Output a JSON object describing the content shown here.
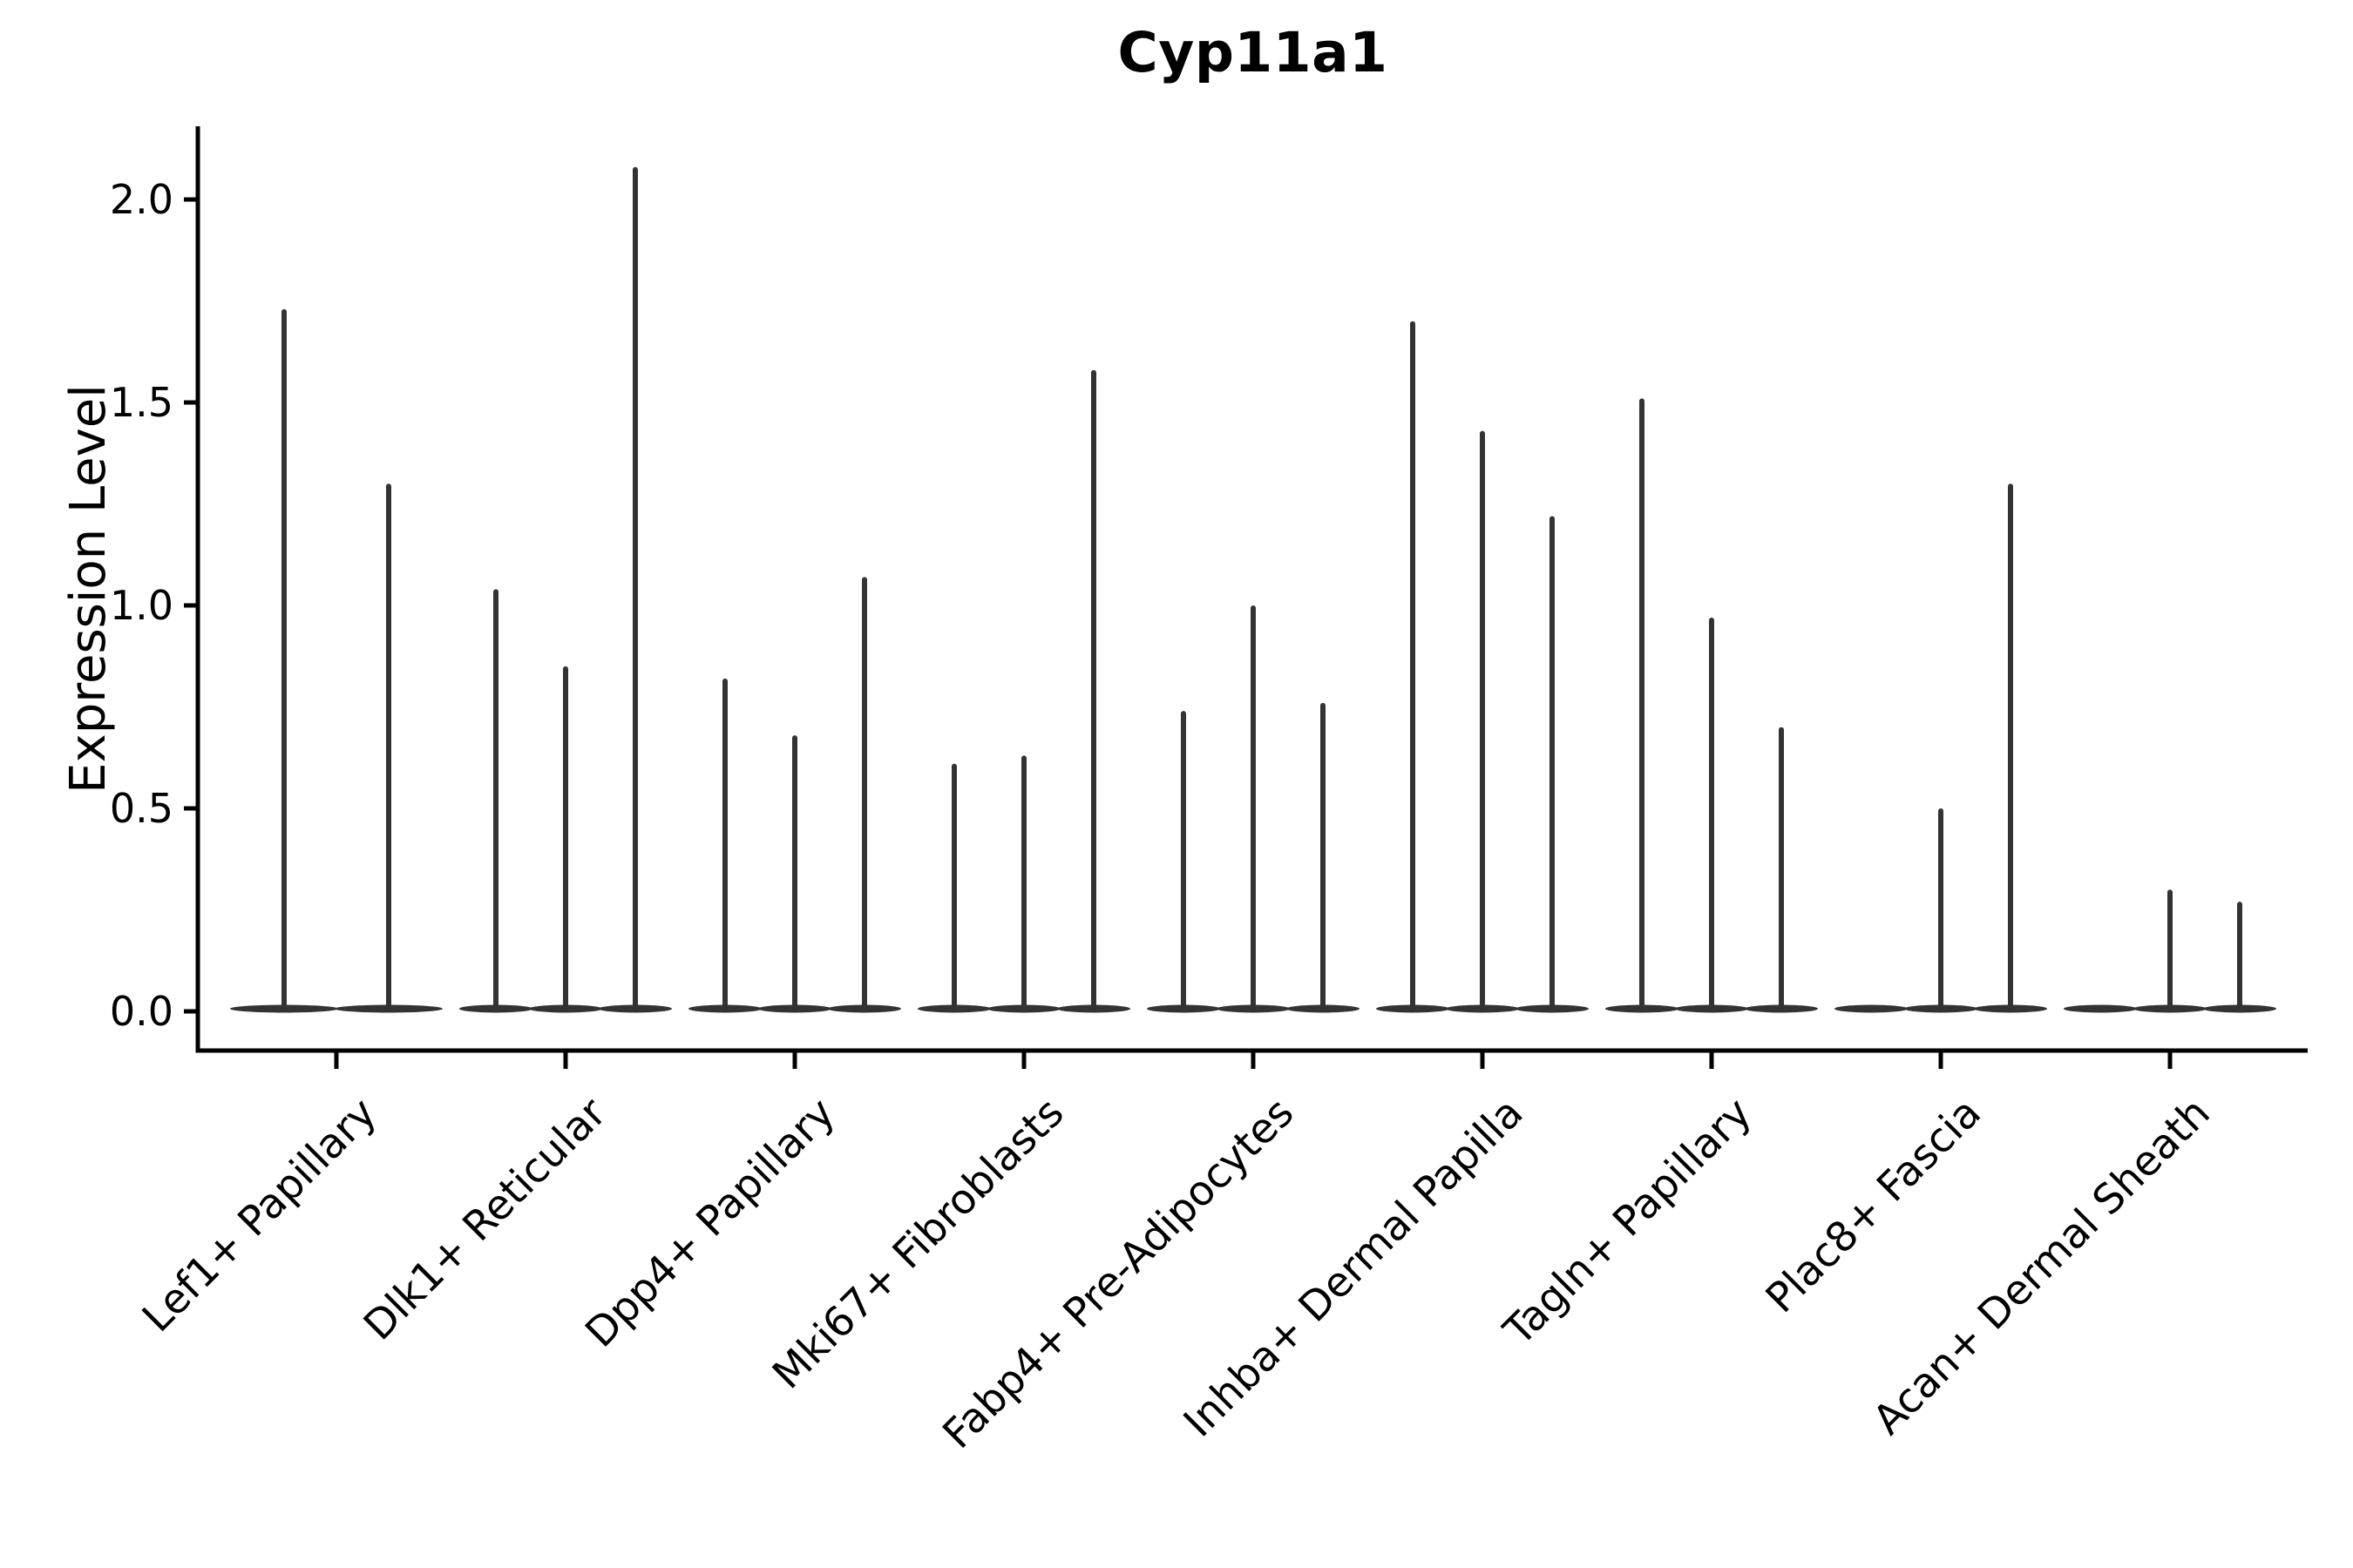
{
  "figure": {
    "background": "#ffffff"
  },
  "chart_data": {
    "type": "violin",
    "title": "Cyp11a1",
    "ylabel": "Expression Level",
    "xlabel": "",
    "yticks": [
      "0.0",
      "0.5",
      "1.0",
      "1.5",
      "2.0"
    ],
    "ytick_values": [
      0.0,
      0.5,
      1.0,
      1.5,
      2.0
    ],
    "ylim": [
      -0.1,
      2.18
    ],
    "grid": "off",
    "legend": "none",
    "xticklabel_rotation_deg": 45,
    "categories": [
      "Lef1+ Papillary",
      "Dlk1+ Reticular",
      "Dpp4+ Papillary",
      "Mki67+ Fibroblasts",
      "Fabp4+ Pre-Adipocytes",
      "Inhba+ Dermal Papilla",
      "Tagln+ Papillary",
      "Plac8+ Fascia",
      "Acan+ Dermal Sheath"
    ],
    "violins": [
      {
        "category": "Lef1+ Papillary",
        "peaks": [
          1.73,
          1.3
        ]
      },
      {
        "category": "Dlk1+ Reticular",
        "peaks": [
          1.04,
          0.85,
          2.08
        ]
      },
      {
        "category": "Dpp4+ Papillary",
        "peaks": [
          0.82,
          0.68,
          1.07
        ]
      },
      {
        "category": "Mki67+ Fibroblasts",
        "peaks": [
          0.61,
          0.63,
          1.58
        ]
      },
      {
        "category": "Fabp4+ Pre-Adipocytes",
        "peaks": [
          0.74,
          1.0,
          0.76
        ]
      },
      {
        "category": "Inhba+ Dermal Papilla",
        "peaks": [
          1.7,
          1.43,
          1.22
        ]
      },
      {
        "category": "Tagln+ Papillary",
        "peaks": [
          1.51,
          0.97,
          0.7
        ]
      },
      {
        "category": "Plac8+ Fascia",
        "peaks": [
          0.0,
          0.5,
          1.3
        ]
      },
      {
        "category": "Acan+ Dermal Sheath",
        "peaks": [
          0.0,
          0.3,
          0.27
        ]
      }
    ],
    "description": "Each category shows thin violins (mostly-zero expression density with a narrow spike); peaks = maximum expression level reached by each violin spike.",
    "colors": {
      "violin": "#333333",
      "axis": "#000000",
      "text": "#000000"
    }
  }
}
